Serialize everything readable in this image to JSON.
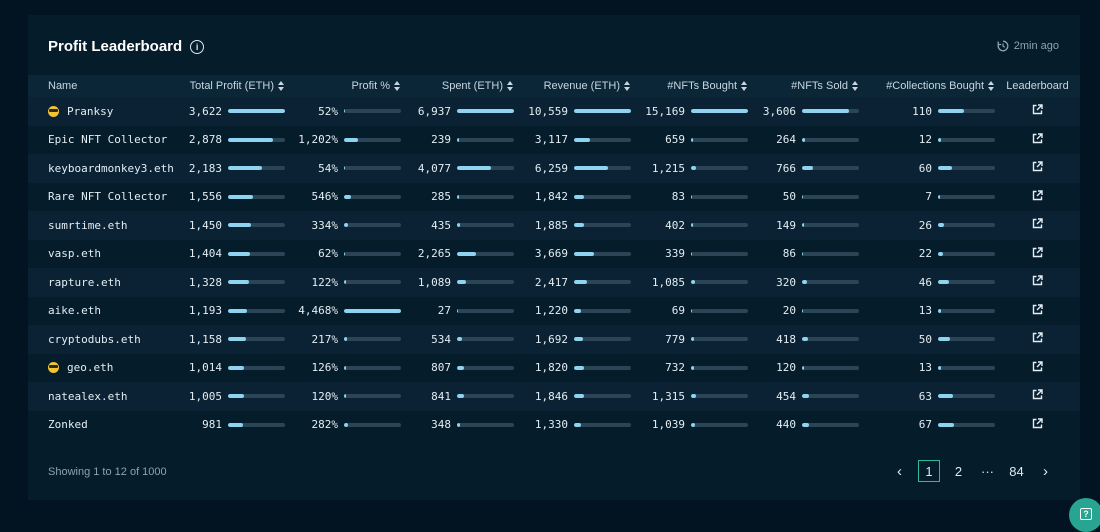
{
  "header": {
    "title": "Profit Leaderboard",
    "updated": "2min ago"
  },
  "columns": [
    "Name",
    "Total Profit (ETH)",
    "Profit %",
    "Spent (ETH)",
    "Revenue (ETH)",
    "#NFTs Bought",
    "#NFTs Sold",
    "#Collections Bought",
    "Leaderboard"
  ],
  "rows": [
    {
      "name": "Pranksy",
      "emoji": true,
      "profit": "3,622",
      "profit_bar": 1.0,
      "pct": "52%",
      "pct_bar": 0.012,
      "spent": "6,937",
      "spent_bar": 1.0,
      "revenue": "10,559",
      "revenue_bar": 1.0,
      "bought": "15,169",
      "bought_bar": 1.0,
      "sold": "3,606",
      "sold_bar": 0.82,
      "collections": "110",
      "collections_bar": 0.46
    },
    {
      "name": "Epic NFT Collector",
      "emoji": false,
      "profit": "2,878",
      "profit_bar": 0.79,
      "pct": "1,202%",
      "pct_bar": 0.24,
      "spent": "239",
      "spent_bar": 0.03,
      "revenue": "3,117",
      "revenue_bar": 0.28,
      "bought": "659",
      "bought_bar": 0.04,
      "sold": "264",
      "sold_bar": 0.06,
      "collections": "12",
      "collections_bar": 0.05
    },
    {
      "name": "keyboardmonkey3.eth",
      "emoji": false,
      "profit": "2,183",
      "profit_bar": 0.6,
      "pct": "54%",
      "pct_bar": 0.012,
      "spent": "4,077",
      "spent_bar": 0.59,
      "revenue": "6,259",
      "revenue_bar": 0.59,
      "bought": "1,215",
      "bought_bar": 0.08,
      "sold": "766",
      "sold_bar": 0.2,
      "collections": "60",
      "collections_bar": 0.25
    },
    {
      "name": "Rare NFT Collector",
      "emoji": false,
      "profit": "1,556",
      "profit_bar": 0.43,
      "pct": "546%",
      "pct_bar": 0.12,
      "spent": "285",
      "spent_bar": 0.04,
      "revenue": "1,842",
      "revenue_bar": 0.17,
      "bought": "83",
      "bought_bar": 0.01,
      "sold": "50",
      "sold_bar": 0.02,
      "collections": "7",
      "collections_bar": 0.03
    },
    {
      "name": "sumrtime.eth",
      "emoji": false,
      "profit": "1,450",
      "profit_bar": 0.4,
      "pct": "334%",
      "pct_bar": 0.075,
      "spent": "435",
      "spent_bar": 0.06,
      "revenue": "1,885",
      "revenue_bar": 0.18,
      "bought": "402",
      "bought_bar": 0.03,
      "sold": "149",
      "sold_bar": 0.04,
      "collections": "26",
      "collections_bar": 0.11
    },
    {
      "name": "vasp.eth",
      "emoji": false,
      "profit": "1,404",
      "profit_bar": 0.39,
      "pct": "62%",
      "pct_bar": 0.014,
      "spent": "2,265",
      "spent_bar": 0.33,
      "revenue": "3,669",
      "revenue_bar": 0.35,
      "bought": "339",
      "bought_bar": 0.02,
      "sold": "86",
      "sold_bar": 0.02,
      "collections": "22",
      "collections_bar": 0.09
    },
    {
      "name": "rapture.eth",
      "emoji": false,
      "profit": "1,328",
      "profit_bar": 0.37,
      "pct": "122%",
      "pct_bar": 0.027,
      "spent": "1,089",
      "spent_bar": 0.16,
      "revenue": "2,417",
      "revenue_bar": 0.23,
      "bought": "1,085",
      "bought_bar": 0.07,
      "sold": "320",
      "sold_bar": 0.09,
      "collections": "46",
      "collections_bar": 0.19
    },
    {
      "name": "aike.eth",
      "emoji": false,
      "profit": "1,193",
      "profit_bar": 0.33,
      "pct": "4,468%",
      "pct_bar": 1.0,
      "spent": "27",
      "spent_bar": 0.01,
      "revenue": "1,220",
      "revenue_bar": 0.12,
      "bought": "69",
      "bought_bar": 0.01,
      "sold": "20",
      "sold_bar": 0.01,
      "collections": "13",
      "collections_bar": 0.05
    },
    {
      "name": "cryptodubs.eth",
      "emoji": false,
      "profit": "1,158",
      "profit_bar": 0.32,
      "pct": "217%",
      "pct_bar": 0.05,
      "spent": "534",
      "spent_bar": 0.08,
      "revenue": "1,692",
      "revenue_bar": 0.16,
      "bought": "779",
      "bought_bar": 0.05,
      "sold": "418",
      "sold_bar": 0.11,
      "collections": "50",
      "collections_bar": 0.21
    },
    {
      "name": "geo.eth",
      "emoji": true,
      "profit": "1,014",
      "profit_bar": 0.28,
      "pct": "126%",
      "pct_bar": 0.028,
      "spent": "807",
      "spent_bar": 0.12,
      "revenue": "1,820",
      "revenue_bar": 0.17,
      "bought": "732",
      "bought_bar": 0.05,
      "sold": "120",
      "sold_bar": 0.03,
      "collections": "13",
      "collections_bar": 0.05
    },
    {
      "name": "natealex.eth",
      "emoji": false,
      "profit": "1,005",
      "profit_bar": 0.28,
      "pct": "120%",
      "pct_bar": 0.027,
      "spent": "841",
      "spent_bar": 0.12,
      "revenue": "1,846",
      "revenue_bar": 0.17,
      "bought": "1,315",
      "bought_bar": 0.09,
      "sold": "454",
      "sold_bar": 0.13,
      "collections": "63",
      "collections_bar": 0.26
    },
    {
      "name": "Zonked",
      "emoji": false,
      "profit": "981",
      "profit_bar": 0.27,
      "pct": "282%",
      "pct_bar": 0.063,
      "spent": "348",
      "spent_bar": 0.05,
      "revenue": "1,330",
      "revenue_bar": 0.13,
      "bought": "1,039",
      "bought_bar": 0.07,
      "sold": "440",
      "sold_bar": 0.12,
      "collections": "67",
      "collections_bar": 0.28
    }
  ],
  "footer": {
    "showing": "Showing 1 to 12 of 1000"
  },
  "pagination": {
    "prev": "‹",
    "pages": [
      "1",
      "2"
    ],
    "ellipsis": "···",
    "last": "84",
    "next": "›"
  },
  "colors": {
    "accent": "#8ed3f0",
    "active_page": "#2bb9a4",
    "help": "#27a592"
  },
  "icons": {
    "info": "info-icon",
    "updated": "history-icon",
    "row_action": "external-link-icon",
    "sort": "sort-icon",
    "emoji": "sunglasses-icon",
    "help": "help-icon"
  },
  "help": {
    "label": "?"
  }
}
